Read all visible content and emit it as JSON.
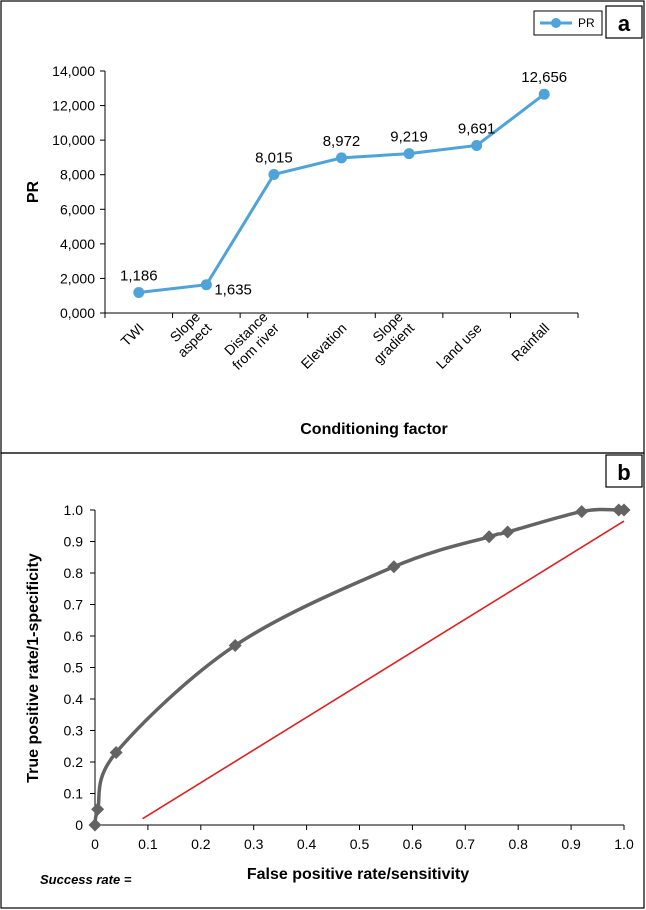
{
  "chart_data": [
    {
      "panel": "a",
      "type": "line",
      "categories": [
        [
          "TWI"
        ],
        [
          "Slope",
          "aspect"
        ],
        [
          "Distance",
          "from river"
        ],
        [
          "Elevation"
        ],
        [
          "Slope",
          "gradient"
        ],
        [
          "Land use"
        ],
        [
          "Rainfall"
        ]
      ],
      "series": [
        {
          "name": "PR",
          "values": [
            1186,
            1635,
            8015,
            8972,
            9219,
            9691,
            12656
          ]
        }
      ],
      "data_labels": [
        "1,186",
        "1,635",
        "8,015",
        "8,972",
        "9,219",
        "9,691",
        "12,656"
      ],
      "y_ticks": [
        "0,000",
        "2,000",
        "4,000",
        "6,000",
        "8,000",
        "10,000",
        "12,000",
        "14,000"
      ],
      "xlabel": "Conditioning factor",
      "ylabel": "PR",
      "ylim": [
        0,
        14000
      ],
      "legend": "top-right",
      "color": "#4fa3d8"
    },
    {
      "panel": "b",
      "type": "line",
      "series": [
        {
          "x": [
            0.0,
            0.005,
            0.04,
            0.265,
            0.565,
            0.745,
            0.78,
            0.92,
            0.99,
            1.0
          ],
          "y": [
            0.0,
            0.05,
            0.23,
            0.57,
            0.82,
            0.915,
            0.93,
            0.995,
            1.0,
            1.0
          ],
          "color": "#636363"
        },
        {
          "x": [
            0.09,
            1.0
          ],
          "y": [
            0.02,
            0.965
          ],
          "color": "#e02020"
        }
      ],
      "x_ticks": [
        "0",
        "0.1",
        "0.2",
        "0.3",
        "0.4",
        "0.5",
        "0.6",
        "0.7",
        "0.8",
        "0.9",
        "1.0"
      ],
      "y_ticks": [
        "0",
        "0.1",
        "0.2",
        "0.3",
        "0.4",
        "0.5",
        "0.6",
        "0.7",
        "0.8",
        "0.9",
        "1.0"
      ],
      "xlabel": "False positive rate/sensitivity",
      "ylabel": "True positive rate/1-specificity",
      "xlim": [
        0,
        1
      ],
      "ylim": [
        0,
        1
      ],
      "note": "Success rate ="
    }
  ]
}
